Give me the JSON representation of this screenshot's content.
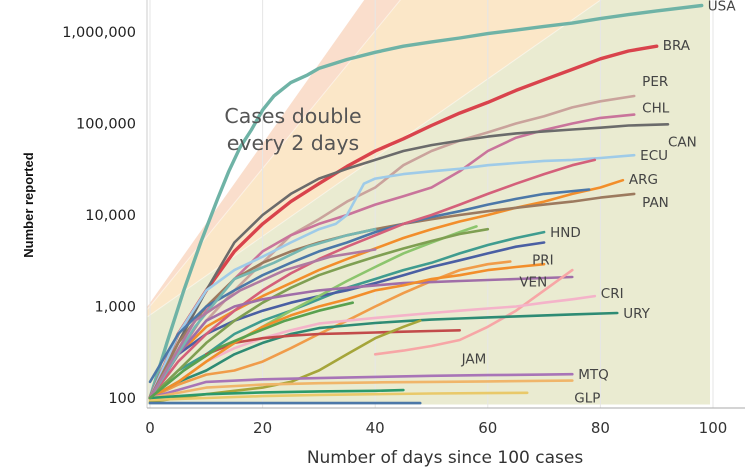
{
  "chart_data": {
    "type": "line",
    "xlabel": "Number of days since 100 cases",
    "ylabel": "Number reported",
    "y_scale": "log",
    "xlim": [
      -3,
      103
    ],
    "ylim": [
      85,
      2000000
    ],
    "x_ticks": [
      {
        "value": 0,
        "label": "0"
      },
      {
        "value": 20,
        "label": "20"
      },
      {
        "value": 40,
        "label": "40"
      },
      {
        "value": 60,
        "label": "60"
      },
      {
        "value": 80,
        "label": "80"
      },
      {
        "value": 100,
        "label": "100"
      }
    ],
    "y_ticks": [
      {
        "value": 100,
        "label": "100"
      },
      {
        "value": 1000,
        "label": "1,000"
      },
      {
        "value": 10000,
        "label": "10,000"
      },
      {
        "value": 100000,
        "label": "100,000"
      },
      {
        "value": 1000000,
        "label": "1,000,000"
      }
    ],
    "annotation": "Cases double every 2 days",
    "grid": "vertical",
    "doubling_bands": [
      {
        "days": 2,
        "color": "#f7c6c0"
      },
      {
        "days": 3,
        "color": "#f9dcc0"
      },
      {
        "days": 4,
        "color": "#fbefc4"
      },
      {
        "days": 7,
        "color": "#dcefd8"
      }
    ],
    "series": [
      {
        "name": "USA",
        "color": "#6fb3a6",
        "label": true,
        "x": [
          0,
          3,
          6,
          9,
          12,
          14,
          16,
          18,
          20,
          22,
          25,
          28,
          30,
          35,
          40,
          45,
          50,
          55,
          60,
          65,
          70,
          75,
          80,
          85,
          90,
          98
        ],
        "y": [
          100,
          400,
          1500,
          5000,
          15000,
          30000,
          55000,
          85000,
          140000,
          200000,
          280000,
          340000,
          400000,
          500000,
          600000,
          700000,
          780000,
          860000,
          960000,
          1050000,
          1150000,
          1250000,
          1400000,
          1550000,
          1700000,
          1950000
        ]
      },
      {
        "name": "BRA",
        "color": "#d9434c",
        "label": true,
        "x": [
          0,
          5,
          10,
          15,
          20,
          25,
          30,
          35,
          40,
          45,
          50,
          55,
          60,
          65,
          70,
          75,
          80,
          85,
          90
        ],
        "y": [
          100,
          500,
          1500,
          4000,
          8000,
          14000,
          22000,
          34000,
          50000,
          68000,
          95000,
          130000,
          170000,
          230000,
          300000,
          390000,
          510000,
          620000,
          700000
        ]
      },
      {
        "name": "PER",
        "color": "#caa39c",
        "label": true,
        "x": [
          0,
          5,
          10,
          15,
          20,
          25,
          30,
          35,
          40,
          45,
          50,
          55,
          60,
          65,
          70,
          75,
          80,
          86
        ],
        "y": [
          100,
          300,
          700,
          1500,
          3000,
          6000,
          9000,
          14000,
          20000,
          35000,
          50000,
          65000,
          80000,
          100000,
          120000,
          150000,
          175000,
          200000
        ]
      },
      {
        "name": "CHL",
        "color": "#c9749b",
        "label": true,
        "x": [
          0,
          5,
          10,
          15,
          20,
          25,
          30,
          35,
          40,
          45,
          50,
          55,
          60,
          65,
          70,
          75,
          80,
          86
        ],
        "y": [
          100,
          300,
          900,
          2000,
          4000,
          6000,
          8000,
          10000,
          13000,
          16000,
          20000,
          30000,
          50000,
          70000,
          85000,
          100000,
          115000,
          125000
        ]
      },
      {
        "name": "CAN",
        "color": "#6b6b6b",
        "label": true,
        "x": [
          0,
          5,
          10,
          15,
          20,
          25,
          30,
          35,
          40,
          45,
          50,
          55,
          60,
          65,
          70,
          75,
          80,
          85,
          92
        ],
        "y": [
          100,
          400,
          1500,
          5000,
          10000,
          17000,
          25000,
          32000,
          40000,
          50000,
          58000,
          65000,
          72000,
          78000,
          82000,
          86000,
          90000,
          95000,
          98000
        ]
      },
      {
        "name": "ECU",
        "color": "#9fcbe8",
        "label": true,
        "x": [
          0,
          5,
          10,
          15,
          20,
          25,
          30,
          33,
          35,
          38,
          40,
          45,
          50,
          55,
          60,
          65,
          70,
          75,
          80,
          86
        ],
        "y": [
          100,
          500,
          1500,
          2500,
          3500,
          5000,
          7000,
          8000,
          10000,
          22000,
          25000,
          28000,
          30000,
          32000,
          35000,
          37000,
          39000,
          40000,
          42000,
          45000
        ]
      },
      {
        "name": "ARG",
        "color": "#f28e2b",
        "label": true,
        "x": [
          0,
          5,
          10,
          15,
          20,
          25,
          30,
          35,
          40,
          45,
          50,
          55,
          60,
          65,
          70,
          75,
          80,
          84
        ],
        "y": [
          100,
          300,
          600,
          900,
          1300,
          1800,
          2500,
          3300,
          4300,
          5600,
          7000,
          8500,
          10000,
          12000,
          14000,
          17000,
          20000,
          24000
        ]
      },
      {
        "name": "PAN",
        "color": "#9c7a5f",
        "label": true,
        "x": [
          0,
          5,
          10,
          15,
          20,
          25,
          30,
          35,
          40,
          45,
          50,
          55,
          60,
          65,
          70,
          75,
          80,
          86
        ],
        "y": [
          100,
          400,
          1000,
          2000,
          3000,
          4000,
          5000,
          6000,
          7000,
          8000,
          9000,
          10000,
          11000,
          12000,
          13000,
          14000,
          15500,
          17000
        ]
      },
      {
        "name": "HND",
        "color": "#3f9c8f",
        "label": true,
        "x": [
          0,
          5,
          10,
          15,
          20,
          25,
          30,
          35,
          40,
          45,
          50,
          55,
          60,
          65,
          70
        ],
        "y": [
          100,
          200,
          300,
          500,
          700,
          900,
          1200,
          1600,
          2000,
          2500,
          3000,
          3800,
          4700,
          5600,
          6500
        ]
      },
      {
        "name": "PRI",
        "color": "#4a5fa3",
        "label": true,
        "x": [
          0,
          5,
          10,
          15,
          20,
          25,
          30,
          35,
          40,
          45,
          50,
          55,
          60,
          65,
          70
        ],
        "y": [
          100,
          300,
          500,
          700,
          900,
          1100,
          1300,
          1500,
          1800,
          2200,
          2700,
          3200,
          3800,
          4500,
          5000
        ]
      },
      {
        "name": "VEN",
        "color": "#f09c4a",
        "label": true,
        "x": [
          0,
          5,
          10,
          15,
          20,
          25,
          30,
          35,
          40,
          45,
          50,
          55,
          60,
          64
        ],
        "y": [
          100,
          140,
          180,
          200,
          250,
          350,
          500,
          700,
          1000,
          1400,
          1900,
          2500,
          2900,
          3100
        ]
      },
      {
        "name": "",
        "color": "#4c78a8",
        "label": false,
        "x": [
          0,
          5,
          10,
          15,
          20,
          25,
          30,
          35,
          40,
          45,
          50,
          55,
          60,
          65,
          70,
          78
        ],
        "y": [
          150,
          500,
          1000,
          1500,
          2200,
          3000,
          4000,
          5000,
          6500,
          8000,
          9500,
          11000,
          13000,
          15000,
          17000,
          19000
        ]
      },
      {
        "name": "",
        "color": "#d4607a",
        "label": false,
        "x": [
          0,
          5,
          10,
          15,
          20,
          25,
          30,
          35,
          40,
          45,
          50,
          55,
          60,
          65,
          70,
          75,
          79
        ],
        "y": [
          100,
          250,
          500,
          900,
          1500,
          2300,
          3300,
          4500,
          6000,
          8000,
          10000,
          13000,
          17000,
          22000,
          28000,
          35000,
          40000
        ]
      },
      {
        "name": "",
        "color": "#8cc56d",
        "label": false,
        "x": [
          0,
          5,
          10,
          15,
          20,
          25,
          30,
          35,
          40,
          45,
          50,
          55,
          58
        ],
        "y": [
          100,
          150,
          250,
          400,
          600,
          900,
          1300,
          1900,
          2700,
          3800,
          5000,
          6500,
          7500
        ]
      },
      {
        "name": "",
        "color": "#7f9f52",
        "label": false,
        "x": [
          0,
          5,
          10,
          15,
          20,
          25,
          30,
          35,
          40,
          45,
          50,
          55,
          60
        ],
        "y": [
          100,
          200,
          400,
          700,
          1100,
          1600,
          2200,
          2800,
          3500,
          4300,
          5200,
          6200,
          7000
        ]
      },
      {
        "name": "",
        "color": "#a06ea8",
        "label": false,
        "x": [
          0,
          5,
          10,
          15,
          20,
          25,
          30,
          35,
          40,
          45,
          50,
          55,
          60,
          65,
          70,
          75
        ],
        "y": [
          100,
          300,
          700,
          1000,
          1200,
          1350,
          1500,
          1600,
          1700,
          1800,
          1850,
          1900,
          1950,
          2000,
          2050,
          2100
        ]
      },
      {
        "name": "",
        "color": "#f7a6a6",
        "label": false,
        "x": [
          40,
          45,
          50,
          55,
          60,
          65,
          70,
          75
        ],
        "y": [
          300,
          330,
          370,
          430,
          600,
          900,
          1500,
          2500
        ]
      },
      {
        "name": "CRI",
        "color": "#f4b3c9",
        "label": true,
        "x": [
          0,
          5,
          10,
          15,
          20,
          25,
          30,
          35,
          40,
          45,
          50,
          55,
          60,
          65,
          70,
          75,
          79
        ],
        "y": [
          100,
          150,
          250,
          350,
          450,
          550,
          650,
          700,
          750,
          800,
          850,
          900,
          950,
          1000,
          1100,
          1200,
          1300
        ]
      },
      {
        "name": "URY",
        "color": "#2e8b74",
        "label": true,
        "x": [
          0,
          5,
          10,
          15,
          20,
          25,
          30,
          35,
          40,
          45,
          50,
          55,
          60,
          65,
          70,
          75,
          83
        ],
        "y": [
          100,
          150,
          200,
          300,
          400,
          500,
          580,
          620,
          660,
          690,
          720,
          740,
          760,
          780,
          800,
          820,
          850
        ]
      },
      {
        "name": "JAM",
        "color": "#c24b4b",
        "label": true,
        "x": [
          10,
          15,
          20,
          25,
          30,
          35,
          40,
          45,
          50,
          55
        ],
        "y": [
          300,
          400,
          450,
          480,
          500,
          510,
          520,
          530,
          540,
          550
        ]
      },
      {
        "name": "",
        "color": "#a5a53a",
        "label": false,
        "x": [
          0,
          5,
          10,
          15,
          20,
          25,
          30,
          35,
          40,
          45,
          48
        ],
        "y": [
          90,
          100,
          110,
          120,
          130,
          150,
          200,
          300,
          450,
          600,
          700
        ]
      },
      {
        "name": "",
        "color": "#f28e2b",
        "label": false,
        "x": [
          0,
          5,
          10,
          15,
          20,
          25,
          30,
          35,
          40,
          45,
          50,
          55,
          60,
          65,
          70
        ],
        "y": [
          100,
          150,
          250,
          400,
          600,
          800,
          1000,
          1200,
          1500,
          1700,
          2000,
          2200,
          2500,
          2700,
          2900
        ]
      },
      {
        "name": "MTQ",
        "color": "#a874b7",
        "label": true,
        "x": [
          0,
          10,
          20,
          30,
          40,
          50,
          60,
          70,
          75
        ],
        "y": [
          100,
          150,
          160,
          165,
          170,
          175,
          178,
          180,
          182
        ]
      },
      {
        "name": "GLP",
        "color": "#f0b56a",
        "label": true,
        "x": [
          0,
          10,
          20,
          30,
          40,
          50,
          60,
          70,
          75
        ],
        "y": [
          100,
          130,
          140,
          145,
          148,
          150,
          152,
          154,
          155
        ]
      },
      {
        "name": "",
        "color": "#e9c96a",
        "label": false,
        "x": [
          0,
          10,
          20,
          30,
          40,
          50,
          60,
          67
        ],
        "y": [
          95,
          100,
          105,
          108,
          110,
          112,
          113,
          114
        ]
      },
      {
        "name": "",
        "color": "#2b9a6b",
        "label": false,
        "x": [
          0,
          10,
          20,
          30,
          40,
          45
        ],
        "y": [
          100,
          110,
          115,
          118,
          120,
          122
        ]
      },
      {
        "name": "",
        "color": "#4c78a8",
        "label": false,
        "x": [
          0,
          10,
          20,
          30,
          40,
          48
        ],
        "y": [
          88,
          88,
          88,
          88,
          88,
          88
        ]
      },
      {
        "name": "",
        "color": "#76b7b2",
        "label": false,
        "x": [
          0,
          8,
          15,
          22,
          28,
          35,
          40
        ],
        "y": [
          100,
          600,
          2000,
          3000,
          4500,
          6000,
          7000
        ]
      },
      {
        "name": "",
        "color": "#b07aa1",
        "label": false,
        "x": [
          0,
          8,
          16,
          24,
          32,
          40
        ],
        "y": [
          100,
          700,
          1500,
          2500,
          3500,
          4200
        ]
      },
      {
        "name": "",
        "color": "#59a14f",
        "label": false,
        "x": [
          0,
          6,
          12,
          18,
          24,
          30,
          36
        ],
        "y": [
          100,
          200,
          350,
          500,
          700,
          900,
          1100
        ]
      }
    ]
  }
}
